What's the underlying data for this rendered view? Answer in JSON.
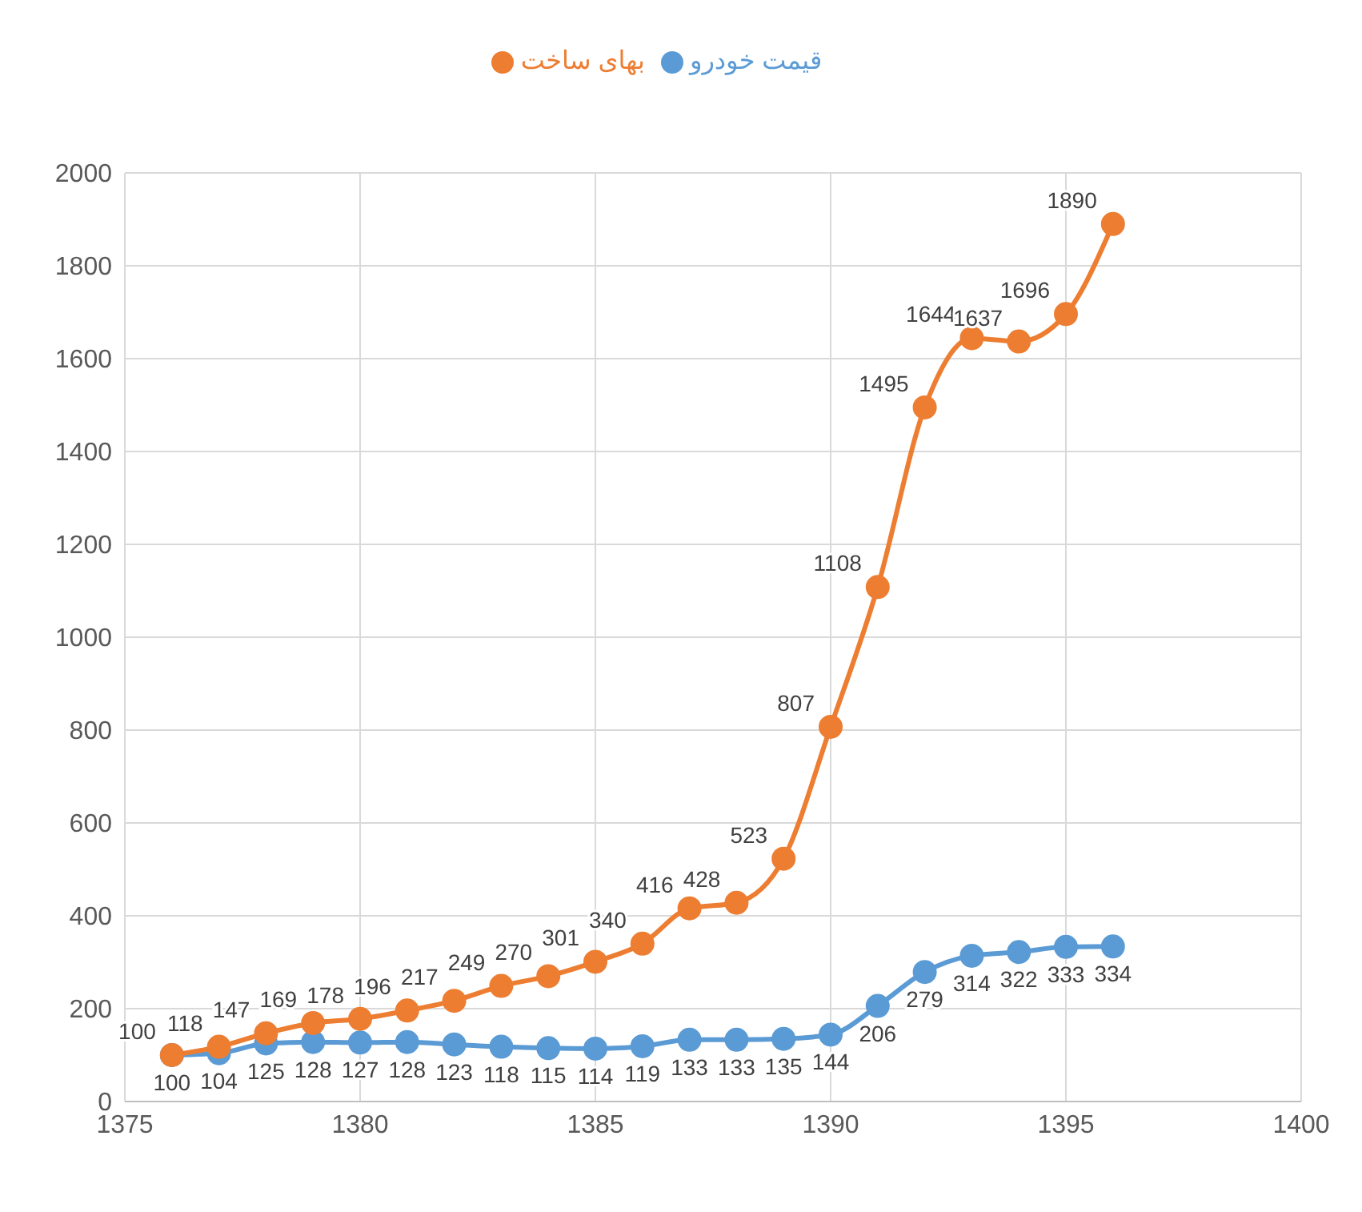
{
  "chart_data": {
    "type": "line",
    "x": [
      1376,
      1377,
      1378,
      1379,
      1380,
      1381,
      1382,
      1383,
      1384,
      1385,
      1386,
      1387,
      1388,
      1389,
      1390,
      1391,
      1392,
      1393,
      1394,
      1395,
      1396
    ],
    "series": [
      {
        "name": "قیمت خودرو",
        "color": "#5b9bd5",
        "values": [
          100,
          104,
          125,
          128,
          127,
          128,
          123,
          118,
          115,
          114,
          119,
          133,
          133,
          135,
          144,
          206,
          279,
          314,
          322,
          333,
          334
        ]
      },
      {
        "name": "بهای ساخت",
        "color": "#ed7d31",
        "values": [
          100,
          118,
          147,
          169,
          178,
          196,
          217,
          249,
          270,
          301,
          340,
          416,
          428,
          523,
          807,
          1108,
          1495,
          1644,
          1637,
          1696,
          1890
        ]
      }
    ],
    "xlim": [
      1375,
      1400
    ],
    "xticks": [
      1375,
      1380,
      1385,
      1390,
      1395,
      1400
    ],
    "ylim": [
      0,
      2000
    ],
    "yticks": [
      0,
      200,
      400,
      600,
      800,
      1000,
      1200,
      1400,
      1600,
      1800,
      2000
    ],
    "grid": true,
    "legend": "top",
    "marker": "circle",
    "line_style": "solid",
    "data_labels": true
  }
}
